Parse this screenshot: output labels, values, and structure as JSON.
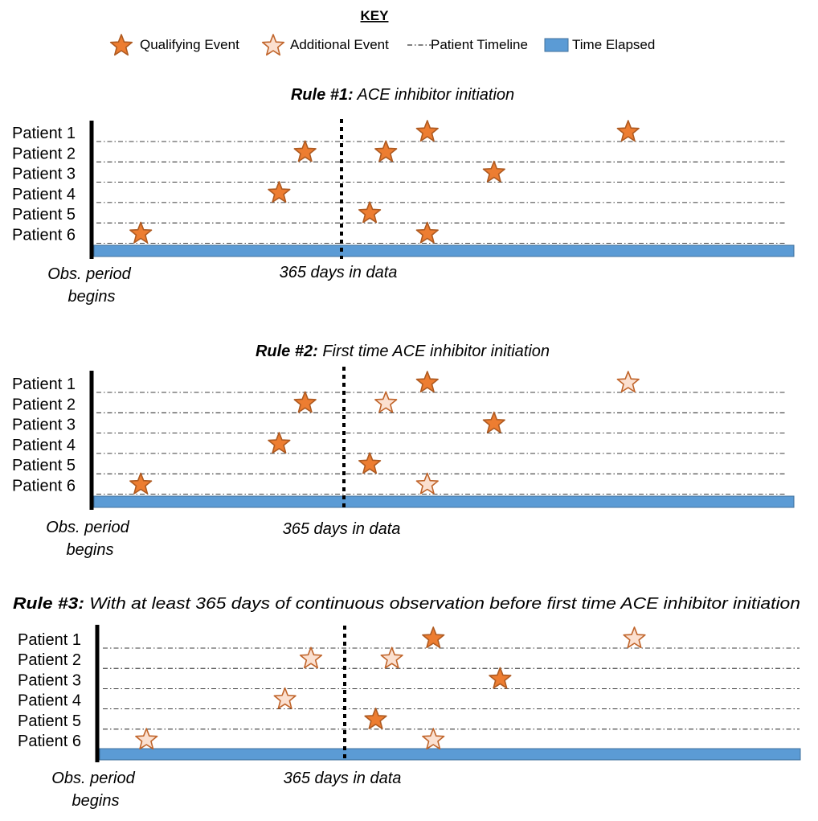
{
  "key": {
    "title": "KEY",
    "items": [
      {
        "label": "Qualifying Event",
        "icon": "qualifying-star-icon"
      },
      {
        "label": "Additional Event",
        "icon": "additional-star-icon"
      },
      {
        "label": "Patient Timeline",
        "icon": "dash-dot-line-icon"
      },
      {
        "label": "Time Elapsed",
        "icon": "blue-bar-icon"
      }
    ]
  },
  "colors": {
    "qualifying_fill": "#ED7D31",
    "qualifying_stroke": "#AE5A21",
    "additional_fill": "#FBE0D0",
    "additional_stroke": "#C0642A",
    "bar_fill": "#5B9BD5",
    "bar_stroke": "#41719C",
    "axis": "#000000"
  },
  "panels": [
    {
      "rule_label": "Rule #1:",
      "rule_text": " ACE inhibitor initiation",
      "patients": [
        "Patient 1",
        "Patient 2",
        "Patient 3",
        "Patient 4",
        "Patient 5",
        "Patient 6"
      ],
      "start_label": [
        "Obs. period",
        "begins"
      ],
      "marker_label": "365 days in data",
      "events": [
        {
          "patient": 1,
          "t": 0.478,
          "kind": "qualifying"
        },
        {
          "patient": 1,
          "t": 0.764,
          "kind": "qualifying"
        },
        {
          "patient": 2,
          "t": 0.304,
          "kind": "qualifying"
        },
        {
          "patient": 2,
          "t": 0.419,
          "kind": "qualifying"
        },
        {
          "patient": 3,
          "t": 0.573,
          "kind": "qualifying"
        },
        {
          "patient": 4,
          "t": 0.267,
          "kind": "qualifying"
        },
        {
          "patient": 5,
          "t": 0.396,
          "kind": "qualifying"
        },
        {
          "patient": 6,
          "t": 0.07,
          "kind": "qualifying"
        },
        {
          "patient": 6,
          "t": 0.478,
          "kind": "qualifying"
        }
      ]
    },
    {
      "rule_label": "Rule #2:",
      "rule_text": " First time ACE inhibitor initiation",
      "patients": [
        "Patient 1",
        "Patient 2",
        "Patient 3",
        "Patient 4",
        "Patient 5",
        "Patient 6"
      ],
      "start_label": [
        "Obs. period",
        "begins"
      ],
      "marker_label": "365 days in data",
      "events": [
        {
          "patient": 1,
          "t": 0.478,
          "kind": "qualifying"
        },
        {
          "patient": 1,
          "t": 0.764,
          "kind": "additional"
        },
        {
          "patient": 2,
          "t": 0.304,
          "kind": "qualifying"
        },
        {
          "patient": 2,
          "t": 0.419,
          "kind": "additional"
        },
        {
          "patient": 3,
          "t": 0.573,
          "kind": "qualifying"
        },
        {
          "patient": 4,
          "t": 0.267,
          "kind": "qualifying"
        },
        {
          "patient": 5,
          "t": 0.396,
          "kind": "qualifying"
        },
        {
          "patient": 6,
          "t": 0.07,
          "kind": "qualifying"
        },
        {
          "patient": 6,
          "t": 0.478,
          "kind": "additional"
        }
      ]
    },
    {
      "rule_label": "Rule #3:",
      "rule_text": " With at least 365 days of continuous observation before first time ACE inhibitor initiation",
      "patients": [
        "Patient 1",
        "Patient 2",
        "Patient 3",
        "Patient 4",
        "Patient 5",
        "Patient 6"
      ],
      "start_label": [
        "Obs. period",
        "begins"
      ],
      "marker_label": "365 days in data",
      "events": [
        {
          "patient": 1,
          "t": 0.478,
          "kind": "qualifying"
        },
        {
          "patient": 1,
          "t": 0.764,
          "kind": "additional"
        },
        {
          "patient": 2,
          "t": 0.304,
          "kind": "additional"
        },
        {
          "patient": 2,
          "t": 0.419,
          "kind": "additional"
        },
        {
          "patient": 3,
          "t": 0.573,
          "kind": "qualifying"
        },
        {
          "patient": 4,
          "t": 0.267,
          "kind": "additional"
        },
        {
          "patient": 5,
          "t": 0.396,
          "kind": "qualifying"
        },
        {
          "patient": 6,
          "t": 0.07,
          "kind": "additional"
        },
        {
          "patient": 6,
          "t": 0.478,
          "kind": "additional"
        }
      ]
    }
  ]
}
